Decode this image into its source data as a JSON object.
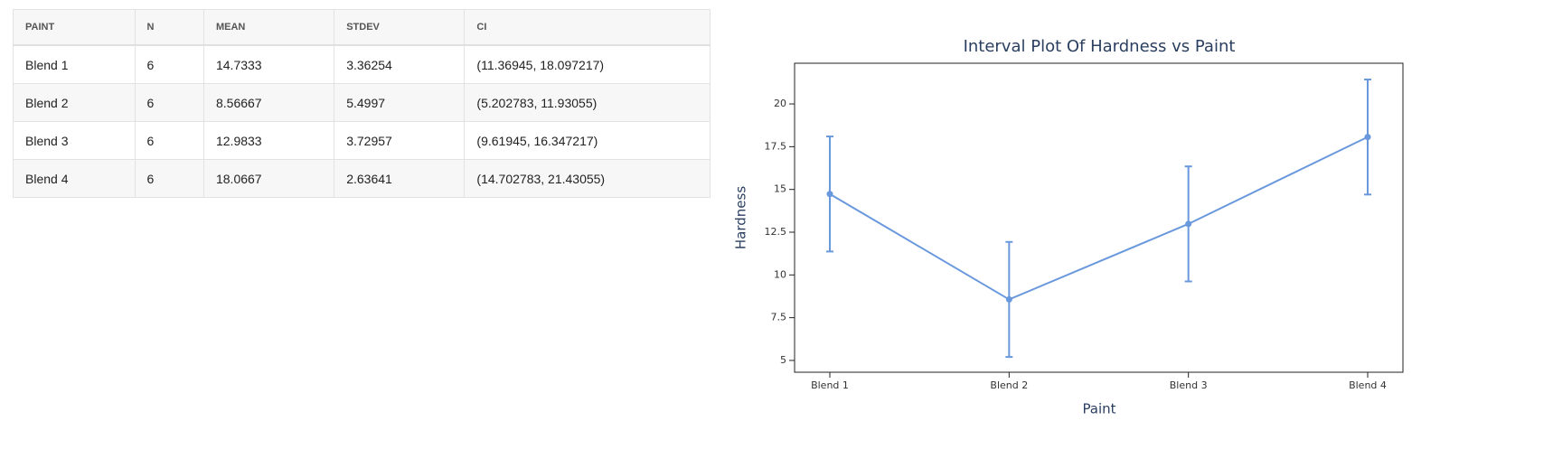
{
  "table": {
    "columns": [
      "PAINT",
      "N",
      "MEAN",
      "STDEV",
      "CI"
    ],
    "rows": [
      [
        "Blend 1",
        "6",
        "14.7333",
        "3.36254",
        "(11.36945, 18.097217)"
      ],
      [
        "Blend 2",
        "6",
        "8.56667",
        "5.4997",
        "(5.202783, 11.93055)"
      ],
      [
        "Blend 3",
        "6",
        "12.9833",
        "3.72957",
        "(9.61945, 16.347217)"
      ],
      [
        "Blend 4",
        "6",
        "18.0667",
        "2.63641",
        "(14.702783, 21.43055)"
      ]
    ]
  },
  "chart_data": {
    "type": "line",
    "title": "Interval Plot Of Hardness vs Paint",
    "x_label": "Paint",
    "y_label": "Hardness",
    "categories": [
      "Blend 1",
      "Blend 2",
      "Blend 3",
      "Blend 4"
    ],
    "values": [
      14.7333,
      8.56667,
      12.9833,
      18.0667
    ],
    "error_lower": [
      11.36945,
      5.202783,
      9.61945,
      14.702783
    ],
    "error_upper": [
      18.097217,
      11.93055,
      16.347217,
      21.43055
    ],
    "color": "#6a98dd",
    "ylim": [
      4.31,
      22.38
    ],
    "yticks": [
      5,
      7.5,
      10,
      12.5,
      15,
      17.5,
      20
    ],
    "grid": false
  }
}
